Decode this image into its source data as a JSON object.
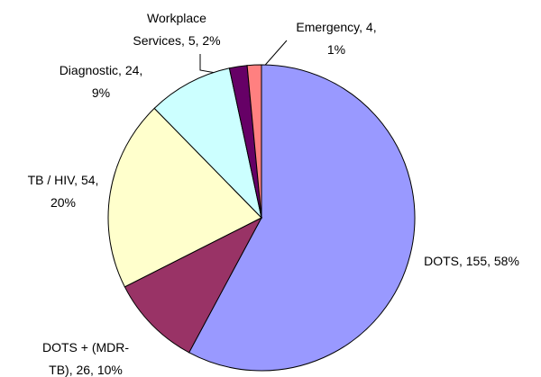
{
  "chart_data": {
    "type": "pie",
    "values": [
      155,
      26,
      54,
      24,
      5,
      4
    ],
    "value_labels": [
      "DOTS, 155, 58%",
      "DOTS + (MDR-\nTB), 26, 10%",
      "TB / HIV, 54,\n20%",
      "Diagnostic, 24,\n9%",
      "Workplace\nServices, 5, 2%",
      "Emergency, 4,\n1%"
    ],
    "colors": [
      "#9999ff",
      "#993366",
      "#ffffcc",
      "#ccffff",
      "#660066",
      "#ff8080"
    ]
  }
}
